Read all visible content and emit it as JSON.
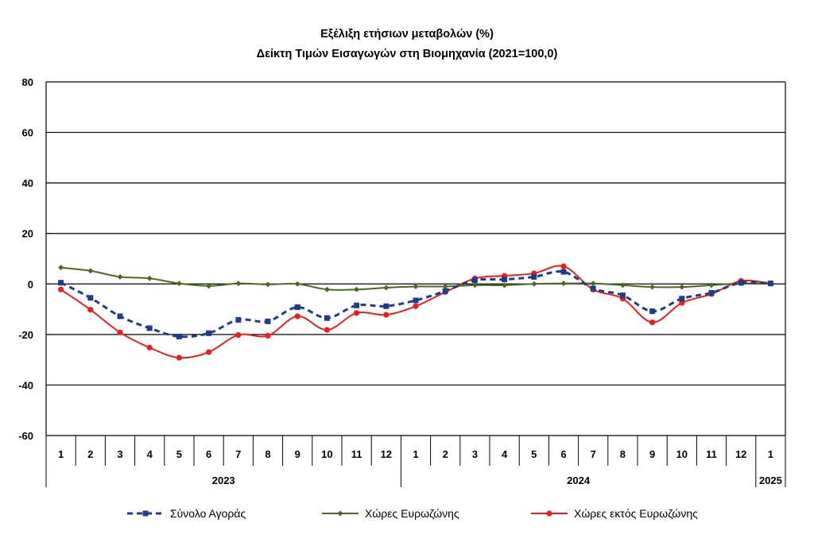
{
  "chart_data": {
    "type": "line",
    "title": "Εξέλιξη ετήσιων μεταβολών (%)",
    "subtitle": "Δείκτη Τιμών Εισαγωγών στη Βιομηχανία (2021=100,0)",
    "ylim": [
      -60,
      80
    ],
    "yticks": [
      "80",
      "60",
      "40",
      "20",
      "0",
      "-20",
      "-40",
      "-60"
    ],
    "categories": [
      "1",
      "2",
      "3",
      "4",
      "5",
      "6",
      "7",
      "8",
      "9",
      "10",
      "11",
      "12",
      "1",
      "2",
      "3",
      "4",
      "5",
      "6",
      "7",
      "8",
      "9",
      "10",
      "11",
      "12",
      "1"
    ],
    "year_groups": [
      {
        "label": "2023",
        "start": 0,
        "count": 12
      },
      {
        "label": "2024",
        "start": 12,
        "count": 12
      },
      {
        "label": "2025",
        "start": 24,
        "count": 1
      }
    ],
    "grid": true,
    "legend_position": "bottom",
    "series": [
      {
        "name": "Σύνολο Αγοράς",
        "color": "#1f3c88",
        "style": "dashed-square",
        "values": [
          0.5,
          -5.5,
          -12.8,
          -17.5,
          -20.8,
          -19.5,
          -14.2,
          -14.8,
          -9.2,
          -13.5,
          -8.5,
          -8.8,
          -6.5,
          -2.8,
          1.5,
          1.8,
          2.8,
          4.8,
          -1.8,
          -4.5,
          -10.8,
          -5.8,
          -3.5,
          0.5,
          0.2
        ]
      },
      {
        "name": "Χώρες Ευρωζώνης",
        "color": "#4a6b1e",
        "style": "solid-diamond",
        "values": [
          6.5,
          5.2,
          2.8,
          2.2,
          0.2,
          -0.8,
          0.2,
          -0.2,
          0.0,
          -2.2,
          -2.2,
          -1.5,
          -1.0,
          -1.0,
          -0.5,
          -0.5,
          0.0,
          0.2,
          0.2,
          -0.5,
          -1.2,
          -1.2,
          -0.5,
          0.2,
          0.2
        ]
      },
      {
        "name": "Χώρες εκτός Ευρωζώνης",
        "color": "#ee1c1c",
        "style": "solid-circle",
        "values": [
          -2.2,
          -10.2,
          -19.2,
          -25.2,
          -29.2,
          -27.0,
          -20.2,
          -20.5,
          -12.8,
          -18.2,
          -11.5,
          -12.2,
          -8.8,
          -3.2,
          2.2,
          3.2,
          4.2,
          7.0,
          -2.2,
          -5.8,
          -15.2,
          -7.5,
          -4.0,
          1.2,
          0.2
        ]
      }
    ]
  }
}
